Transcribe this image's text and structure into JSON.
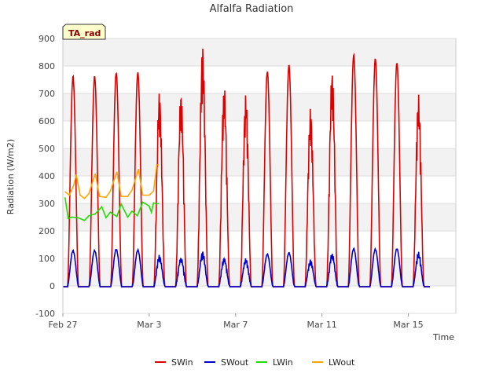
{
  "chart_data": {
    "type": "line",
    "title": "Alfalfa Radiation",
    "xlabel": "Time",
    "ylabel": "Radiation (W/m2)",
    "ylim": [
      -100,
      900
    ],
    "yticks": [
      -100,
      0,
      100,
      200,
      300,
      400,
      500,
      600,
      700,
      800,
      900
    ],
    "xlim": [
      0,
      18.2
    ],
    "xticks": [
      {
        "value": 0,
        "label": "Feb 27"
      },
      {
        "value": 4,
        "label": "Mar 3"
      },
      {
        "value": 8,
        "label": "Mar 7"
      },
      {
        "value": 12,
        "label": "Mar 11"
      },
      {
        "value": 16,
        "label": "Mar 15"
      }
    ],
    "badge": "TA_rad",
    "legend_position": "bottom-center",
    "grid": true,
    "series": [
      {
        "name": "SWin",
        "color": "#dd0000",
        "daily_peaks": [
          762,
          762,
          776,
          776,
          706,
          712,
          875,
          734,
          698,
          780,
          802,
          647,
          790,
          840,
          826,
          812,
          695
        ],
        "day_starts": [
          0,
          1,
          2,
          3,
          4,
          5,
          6,
          7,
          8,
          9,
          10,
          11,
          12,
          13,
          14,
          15,
          16
        ]
      },
      {
        "name": "SWout",
        "color": "#0000cc",
        "daily_peaks": [
          128,
          128,
          133,
          130,
          112,
          105,
          125,
          103,
          100,
          115,
          120,
          95,
          120,
          135,
          133,
          135,
          122
        ],
        "day_starts": [
          0,
          1,
          2,
          3,
          4,
          5,
          6,
          7,
          8,
          9,
          10,
          11,
          12,
          13,
          14,
          15,
          16
        ]
      },
      {
        "name": "LWin",
        "color": "#22dd00",
        "x": [
          0.1,
          0.25,
          0.4,
          0.7,
          1.0,
          1.2,
          1.5,
          1.8,
          2.0,
          2.2,
          2.5,
          2.7,
          3.0,
          3.2,
          3.45,
          3.7,
          4.0,
          4.1,
          4.2,
          4.35,
          4.45
        ],
        "y": [
          322,
          245,
          250,
          248,
          238,
          255,
          262,
          288,
          248,
          268,
          252,
          298,
          250,
          272,
          255,
          305,
          290,
          268,
          302,
          298,
          300
        ]
      },
      {
        "name": "LWout",
        "color": "#ffa500",
        "x": [
          0.1,
          0.3,
          0.5,
          0.62,
          0.8,
          1.0,
          1.2,
          1.5,
          1.7,
          2.0,
          2.2,
          2.5,
          2.7,
          3.0,
          3.2,
          3.5,
          3.7,
          4.0,
          4.2,
          4.35,
          4.45
        ],
        "y": [
          343,
          330,
          365,
          405,
          330,
          318,
          335,
          408,
          325,
          322,
          345,
          415,
          325,
          325,
          348,
          425,
          330,
          330,
          345,
          440,
          440
        ]
      }
    ]
  }
}
